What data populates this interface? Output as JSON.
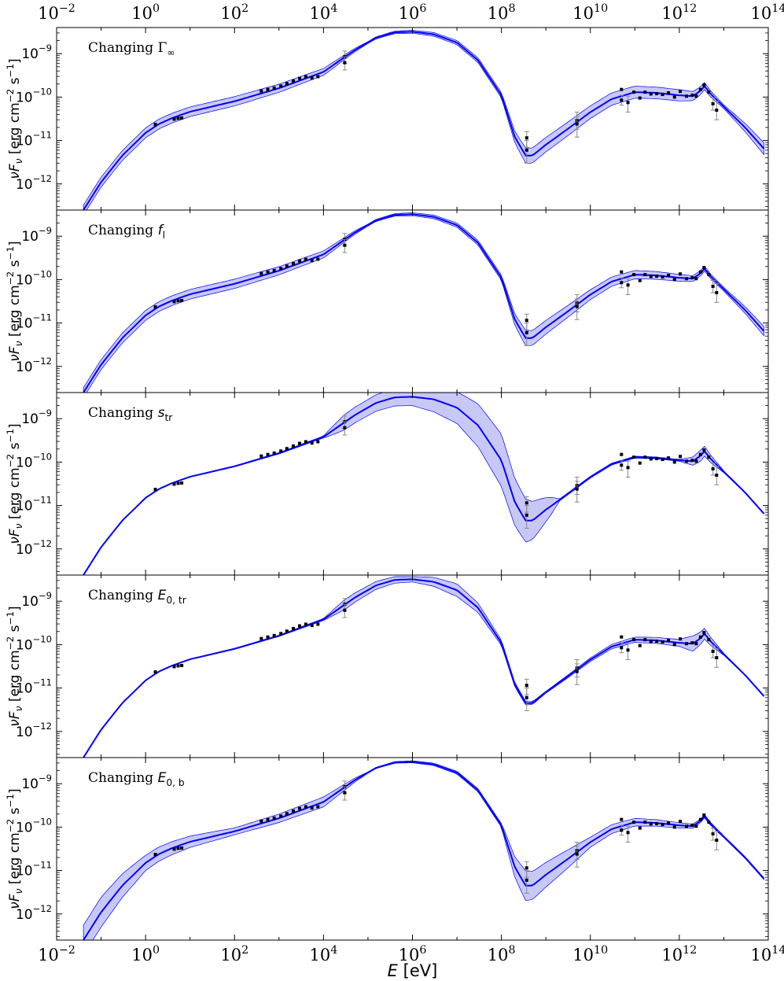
{
  "figure": {
    "x_label": "E [eV]",
    "y_label": "νF_ν [erg cm⁻² s⁻¹]"
  },
  "chart_data": {
    "type": "line",
    "x_scale": "log",
    "y_scale": "log",
    "xlim": [
      0.01,
      100000000000000
    ],
    "ylim": [
      2.5e-13,
      4e-09
    ],
    "x_tick_labels": [
      "10^-2",
      "10^0",
      "10^2",
      "10^4",
      "10^6",
      "10^8",
      "10^10",
      "10^12",
      "10^14"
    ],
    "y_tick_labels": [
      "10^-9",
      "10^-10",
      "10^-11",
      "10^-12"
    ],
    "colors": {
      "model": "#0000ff",
      "band_fill": "#c8c8f4",
      "data": "#000000",
      "errorbar": "#8a8a8a"
    },
    "data_points": [
      {
        "E": 1.66,
        "F": 2.35e-11
      },
      {
        "E": 4.4,
        "F": 3.1e-11
      },
      {
        "E": 5.4,
        "F": 3.25e-11
      },
      {
        "E": 6.5,
        "F": 3.3e-11
      },
      {
        "E": 400,
        "F": 1.38e-10
      },
      {
        "E": 560,
        "F": 1.5e-10
      },
      {
        "E": 780,
        "F": 1.62e-10
      },
      {
        "E": 1100,
        "F": 1.8e-10
      },
      {
        "E": 1500,
        "F": 2.05e-10
      },
      {
        "E": 2100,
        "F": 2.35e-10
      },
      {
        "E": 2900,
        "F": 2.7e-10
      },
      {
        "E": 4000,
        "F": 2.95e-10
      },
      {
        "E": 5500,
        "F": 2.75e-10
      },
      {
        "E": 7500,
        "F": 2.95e-10
      },
      {
        "E": 30000,
        "F": 8.5e-10,
        "lo": 6e-10,
        "hi": 1.15e-09
      },
      {
        "E": 30000,
        "F": 6.2e-10,
        "lo": 4.2e-10,
        "hi": 8.5e-10
      },
      {
        "E": 370000000,
        "F": 1.15e-11,
        "lo": 7e-12,
        "hi": 1.6e-11
      },
      {
        "E": 370000000,
        "F": 6e-12,
        "lo": 3e-12,
        "hi": 1e-11
      },
      {
        "E": 5000000000,
        "F": 2.9e-11,
        "lo": 1.8e-11,
        "hi": 4.5e-11
      },
      {
        "E": 5000000000,
        "F": 2.4e-11,
        "lo": 1.2e-11,
        "hi": 3.6e-11
      },
      {
        "E": 50000000000,
        "F": 1.5e-10
      },
      {
        "E": 50000000000,
        "F": 8.5e-11,
        "lo": 6.5e-11,
        "hi": 1.1e-10
      },
      {
        "E": 70000000000,
        "F": 7.5e-11,
        "lo": 4.5e-11,
        "hi": 1.05e-10
      },
      {
        "E": 95000000000,
        "F": 1.3e-10
      },
      {
        "E": 130000000000,
        "F": 9.5e-11
      },
      {
        "E": 170000000000,
        "F": 1.3e-10
      },
      {
        "E": 230000000000,
        "F": 1.18e-10
      },
      {
        "E": 310000000000,
        "F": 1.2e-10
      },
      {
        "E": 420000000000,
        "F": 1.15e-10
      },
      {
        "E": 570000000000,
        "F": 1.25e-10
      },
      {
        "E": 780000000000,
        "F": 1e-10
      },
      {
        "E": 1050000000000,
        "F": 1.35e-10
      },
      {
        "E": 1450000000000,
        "F": 1.05e-10
      },
      {
        "E": 1950000000000,
        "F": 1.1e-10
      },
      {
        "E": 2400000000000,
        "F": 1.05e-10
      },
      {
        "E": 3000000000000,
        "F": 1.5e-10
      },
      {
        "E": 3600000000000,
        "F": 1.9e-10
      },
      {
        "E": 4600000000000,
        "F": 1.3e-10
      },
      {
        "E": 5700000000000,
        "F": 7e-11,
        "lo": 5e-11,
        "hi": 9.5e-11
      },
      {
        "E": 6900000000000,
        "F": 5e-11,
        "lo": 3e-11,
        "hi": 8e-11
      }
    ],
    "model_curve": [
      {
        "E": 0.04,
        "F": 2.5e-13
      },
      {
        "E": 0.1,
        "F": 1.1e-12
      },
      {
        "E": 0.3,
        "F": 4.5e-12
      },
      {
        "E": 1,
        "F": 1.5e-11
      },
      {
        "E": 2,
        "F": 2.4e-11
      },
      {
        "E": 4,
        "F": 3.3e-11
      },
      {
        "E": 10,
        "F": 4.6e-11
      },
      {
        "E": 100,
        "F": 8e-11
      },
      {
        "E": 1000,
        "F": 1.6e-10
      },
      {
        "E": 10000,
        "F": 3.8e-10
      },
      {
        "E": 50000,
        "F": 1.2e-09
      },
      {
        "E": 150000,
        "F": 2.3e-09
      },
      {
        "E": 400000,
        "F": 3.1e-09
      },
      {
        "E": 1000000,
        "F": 3.2e-09
      },
      {
        "E": 3000000,
        "F": 2.8e-09
      },
      {
        "E": 10000000,
        "F": 1.8e-09
      },
      {
        "E": 30000000,
        "F": 7e-10
      },
      {
        "E": 100000000,
        "F": 1.1e-10
      },
      {
        "E": 200000000,
        "F": 1.2e-11
      },
      {
        "E": 350000000,
        "F": 4.5e-12
      },
      {
        "E": 500000000,
        "F": 4.5e-12
      },
      {
        "E": 1000000000,
        "F": 8e-12
      },
      {
        "E": 3000000000,
        "F": 1.8e-11
      },
      {
        "E": 10000000000,
        "F": 4.5e-11
      },
      {
        "E": 30000000000,
        "F": 9e-11
      },
      {
        "E": 100000000000,
        "F": 1.3e-10
      },
      {
        "E": 300000000000,
        "F": 1.25e-10
      },
      {
        "E": 1000000000000,
        "F": 1.1e-10
      },
      {
        "E": 2000000000000,
        "F": 1.05e-10
      },
      {
        "E": 3000000000000,
        "F": 1.4e-10
      },
      {
        "E": 3700000000000,
        "F": 1.8e-10
      },
      {
        "E": 5000000000000,
        "F": 1.2e-10
      },
      {
        "E": 10000000000000,
        "F": 6e-11
      },
      {
        "E": 30000000000000,
        "F": 2e-11
      },
      {
        "E": 80000000000000,
        "F": 6.5e-12
      }
    ],
    "panels": [
      {
        "label": "Changing Γ∞",
        "band": [
          {
            "E": 1,
            "f": 1.3
          },
          {
            "E": 100,
            "f": 1.28
          },
          {
            "E": 10000,
            "f": 1.2
          },
          {
            "E": 100000,
            "f": 1.05
          },
          {
            "E": 100000000,
            "f": 1.15
          },
          {
            "E": 350000000,
            "f": 1.5
          },
          {
            "E": 10000000000,
            "f": 1.4
          },
          {
            "E": 1000000000000,
            "f": 1.35
          },
          {
            "E": 10000000000000,
            "f": 1.1
          },
          {
            "E": 100000000000000,
            "f": 1.4
          }
        ]
      },
      {
        "label": "Changing f_l",
        "band": [
          {
            "E": 1,
            "f": 1.3
          },
          {
            "E": 100,
            "f": 1.28
          },
          {
            "E": 10000,
            "f": 1.2
          },
          {
            "E": 100000,
            "f": 1.05
          },
          {
            "E": 100000000,
            "f": 1.15
          },
          {
            "E": 350000000,
            "f": 1.5
          },
          {
            "E": 10000000000,
            "f": 1.3
          },
          {
            "E": 1000000000000,
            "f": 1.2
          },
          {
            "E": 10000000000000,
            "f": 1.1
          },
          {
            "E": 100000000000000,
            "f": 1.3
          }
        ]
      },
      {
        "label": "Changing s_tr",
        "band": [
          {
            "E": 1,
            "f": 1
          },
          {
            "E": 10000,
            "f": 1.05
          },
          {
            "E": 30000,
            "f": 1.5
          },
          {
            "E": 1000000,
            "f": 1.6
          },
          {
            "E": 10000000,
            "f": 2.3
          },
          {
            "E": 100000000,
            "f": 4
          },
          {
            "E": 400000000,
            "f": 3
          },
          {
            "E": 2000000000,
            "f": 1.05
          },
          {
            "E": 1000000000000,
            "f": 1.05
          },
          {
            "E": 3000000000000,
            "f": 1.35
          },
          {
            "E": 10000000000000,
            "f": 1.05
          },
          {
            "E": 100000000000000,
            "f": 1
          }
        ]
      },
      {
        "label": "Changing E_0,tr",
        "band": [
          {
            "E": 1,
            "f": 1
          },
          {
            "E": 10000,
            "f": 1.05
          },
          {
            "E": 30000,
            "f": 1.3
          },
          {
            "E": 1000000,
            "f": 1.15
          },
          {
            "E": 10000000,
            "f": 1.4
          },
          {
            "E": 100000000,
            "f": 1.15
          },
          {
            "E": 1000000000,
            "f": 1.05
          },
          {
            "E": 1000000000000,
            "f": 1.2
          },
          {
            "E": 2000000000000,
            "f": 1.5
          },
          {
            "E": 10000000000000,
            "f": 1.05
          },
          {
            "E": 100000000000000,
            "f": 1
          }
        ]
      },
      {
        "label": "Changing E_0,b",
        "band": [
          {
            "E": 0.1,
            "f": 2.2
          },
          {
            "E": 1,
            "f": 1.5
          },
          {
            "E": 100,
            "f": 1.2
          },
          {
            "E": 10000,
            "f": 1.3
          },
          {
            "E": 100000,
            "f": 1.03
          },
          {
            "E": 100000000,
            "f": 1.1
          },
          {
            "E": 350000000,
            "f": 2.2
          },
          {
            "E": 10000000000,
            "f": 1.3
          },
          {
            "E": 1000000000000,
            "f": 1.15
          },
          {
            "E": 10000000000000,
            "f": 1.05
          },
          {
            "E": 100000000000000,
            "f": 1.05
          }
        ]
      }
    ]
  }
}
